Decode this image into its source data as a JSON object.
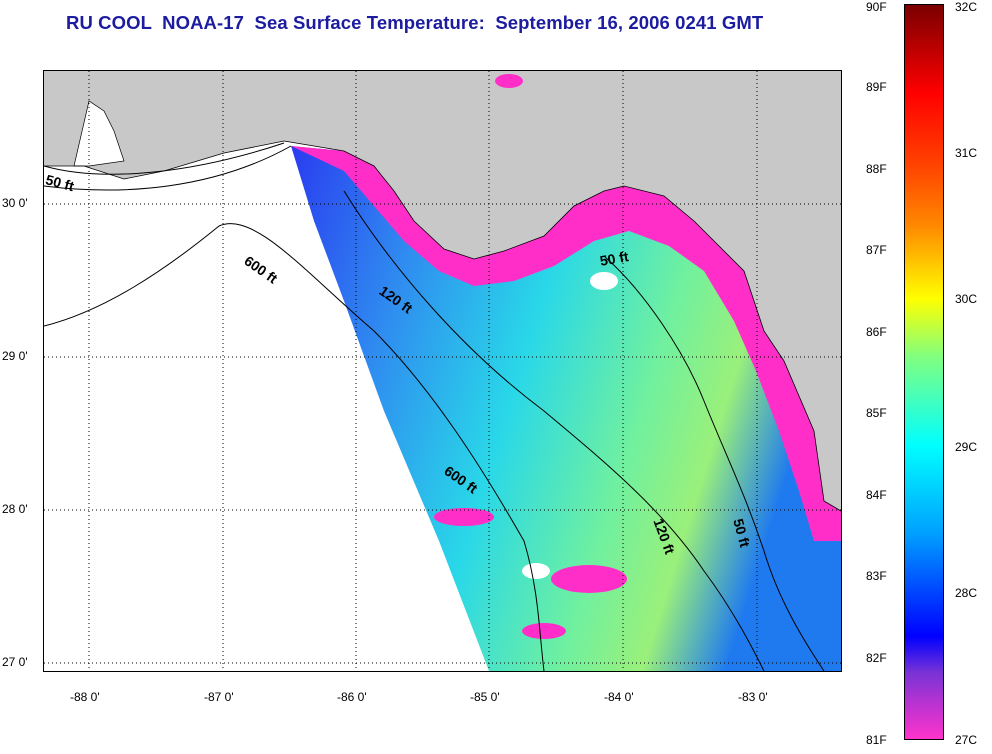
{
  "title": "RU COOL  NOAA-17  Sea Surface Temperature:  September 16, 2006 0241 GMT",
  "map": {
    "lon_labels": [
      "-88 0'",
      "-87 0'",
      "-86 0'",
      "-85 0'",
      "-84 0'",
      "-83 0'"
    ],
    "lat_labels": [
      "30 0'",
      "29 0'",
      "28 0'",
      "27 0'"
    ],
    "isobath_labels": [
      "50 ft",
      "600 ft",
      "120 ft",
      "50 ft",
      "600 ft",
      "120 ft",
      "50 ft"
    ],
    "colors": {
      "land": "#c8c8c8",
      "no_data": "#ffffff",
      "grid": "#000000",
      "cloud_flag": "#ff33cc"
    }
  },
  "colorbar": {
    "fahrenheit_labels": [
      "90F",
      "89F",
      "88F",
      "87F",
      "86F",
      "85F",
      "84F",
      "83F",
      "82F",
      "81F"
    ],
    "celsius_labels": [
      "32C",
      "31C",
      "30C",
      "29C",
      "28C",
      "27C"
    ],
    "range_f": [
      81,
      90
    ],
    "range_c": [
      27,
      32
    ],
    "palette": [
      "#7a0000",
      "#ff0000",
      "#ff8800",
      "#ffff00",
      "#00ffff",
      "#0000ff",
      "#ff33cc"
    ]
  }
}
